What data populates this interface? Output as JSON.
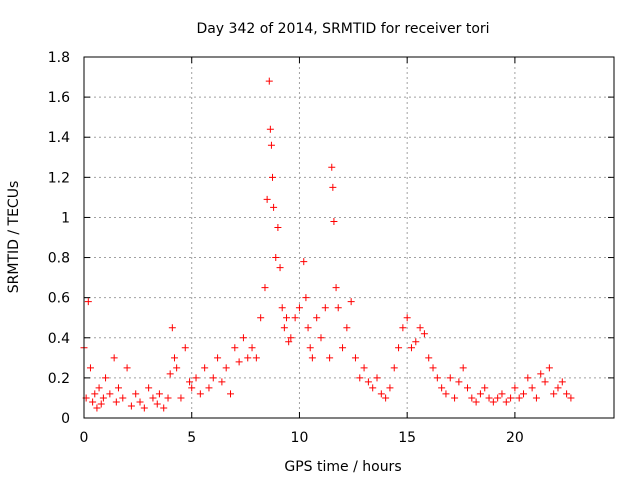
{
  "chart_data": {
    "type": "scatter",
    "title": "Day 342 of 2014, SRMTID for receiver tori",
    "xlabel": "GPS time / hours",
    "ylabel": "SRMTID / TECUs",
    "xlim": [
      0,
      24.6
    ],
    "ylim": [
      0,
      1.8
    ],
    "x_ticks": [
      0,
      5,
      10,
      15,
      20
    ],
    "y_ticks": [
      0,
      0.2,
      0.4,
      0.6,
      0.8,
      1,
      1.2,
      1.4,
      1.6,
      1.8
    ],
    "x_tick_labels": [
      "0",
      "5",
      "10",
      "15",
      "20"
    ],
    "y_tick_labels": [
      "0",
      "0.2",
      "0.4",
      "0.6",
      "0.8",
      "1",
      "1.2",
      "1.4",
      "1.6",
      "1.8"
    ],
    "grid": true,
    "marker": "plus",
    "color": "#ff0000",
    "series": [
      {
        "name": "SRMTID",
        "x": [
          0.0,
          0.1,
          0.2,
          0.3,
          0.4,
          0.5,
          0.6,
          0.7,
          0.8,
          0.9,
          1.0,
          1.2,
          1.4,
          1.5,
          1.6,
          1.8,
          2.0,
          2.2,
          2.4,
          2.6,
          2.8,
          3.0,
          3.2,
          3.4,
          3.5,
          3.7,
          3.9,
          4.0,
          4.1,
          4.2,
          4.3,
          4.5,
          4.7,
          4.9,
          5.0,
          5.2,
          5.4,
          5.6,
          5.8,
          6.0,
          6.2,
          6.4,
          6.6,
          6.8,
          7.0,
          7.2,
          7.4,
          7.6,
          7.8,
          8.0,
          8.2,
          8.4,
          8.5,
          8.6,
          8.65,
          8.7,
          8.75,
          8.8,
          8.9,
          9.0,
          9.1,
          9.2,
          9.3,
          9.4,
          9.5,
          9.6,
          9.8,
          10.0,
          10.2,
          10.3,
          10.4,
          10.5,
          10.6,
          10.8,
          11.0,
          11.2,
          11.4,
          11.5,
          11.55,
          11.6,
          11.7,
          11.8,
          12.0,
          12.2,
          12.4,
          12.6,
          12.8,
          13.0,
          13.2,
          13.4,
          13.6,
          13.8,
          14.0,
          14.2,
          14.4,
          14.6,
          14.8,
          15.0,
          15.2,
          15.4,
          15.6,
          15.8,
          16.0,
          16.2,
          16.4,
          16.6,
          16.8,
          17.0,
          17.2,
          17.4,
          17.6,
          17.8,
          18.0,
          18.2,
          18.4,
          18.6,
          18.8,
          19.0,
          19.2,
          19.4,
          19.6,
          19.8,
          20.0,
          20.2,
          20.4,
          20.6,
          20.8,
          21.0,
          21.2,
          21.4,
          21.6,
          21.8,
          22.0,
          22.2,
          22.4,
          22.6
        ],
        "y": [
          0.35,
          0.1,
          0.58,
          0.25,
          0.08,
          0.12,
          0.05,
          0.15,
          0.07,
          0.1,
          0.2,
          0.12,
          0.3,
          0.08,
          0.15,
          0.1,
          0.25,
          0.06,
          0.12,
          0.08,
          0.05,
          0.15,
          0.1,
          0.07,
          0.12,
          0.05,
          0.1,
          0.22,
          0.45,
          0.3,
          0.25,
          0.1,
          0.35,
          0.18,
          0.15,
          0.2,
          0.12,
          0.25,
          0.15,
          0.2,
          0.3,
          0.18,
          0.25,
          0.12,
          0.35,
          0.28,
          0.4,
          0.3,
          0.35,
          0.3,
          0.5,
          0.65,
          1.09,
          1.68,
          1.44,
          1.36,
          1.2,
          1.05,
          0.8,
          0.95,
          0.75,
          0.55,
          0.45,
          0.5,
          0.38,
          0.4,
          0.5,
          0.55,
          0.78,
          0.6,
          0.45,
          0.35,
          0.3,
          0.5,
          0.4,
          0.55,
          0.3,
          1.25,
          1.15,
          0.98,
          0.65,
          0.55,
          0.35,
          0.45,
          0.58,
          0.3,
          0.2,
          0.25,
          0.18,
          0.15,
          0.2,
          0.12,
          0.1,
          0.15,
          0.25,
          0.35,
          0.45,
          0.5,
          0.35,
          0.38,
          0.45,
          0.42,
          0.3,
          0.25,
          0.2,
          0.15,
          0.12,
          0.2,
          0.1,
          0.18,
          0.25,
          0.15,
          0.1,
          0.08,
          0.12,
          0.15,
          0.1,
          0.08,
          0.1,
          0.12,
          0.08,
          0.1,
          0.15,
          0.1,
          0.12,
          0.2,
          0.15,
          0.1,
          0.22,
          0.18,
          0.25,
          0.12,
          0.15,
          0.18,
          0.12,
          0.1
        ]
      }
    ]
  }
}
